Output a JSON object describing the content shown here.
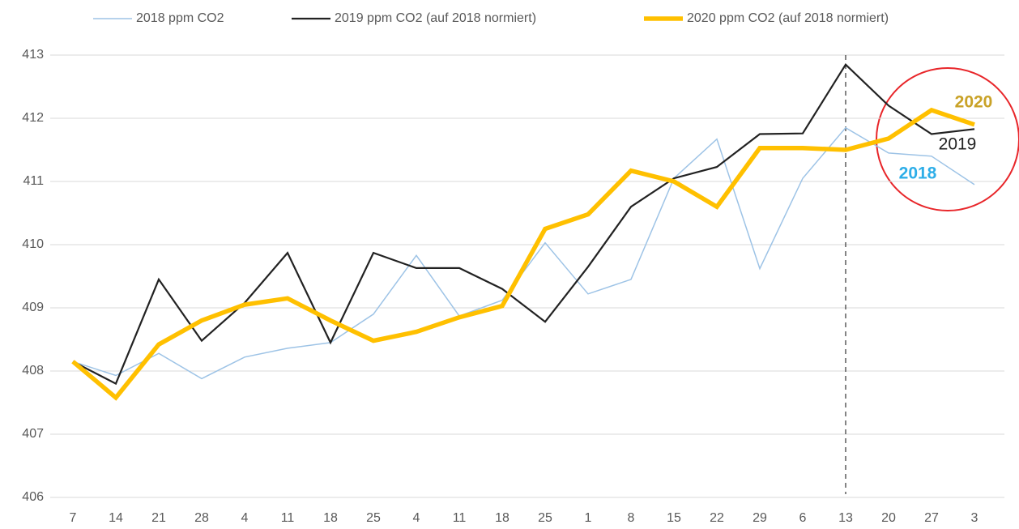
{
  "chart_data": {
    "type": "line",
    "categories": [
      "7",
      "14",
      "21",
      "28",
      "4",
      "11",
      "18",
      "25",
      "4",
      "11",
      "18",
      "25",
      "1",
      "8",
      "15",
      "22",
      "29",
      "6",
      "13",
      "20",
      "27",
      "3"
    ],
    "series": [
      {
        "name": "2018 ppm CO2",
        "color": "#9dc3e6",
        "width": 1.5,
        "values": [
          408.15,
          407.93,
          408.28,
          407.88,
          408.22,
          408.36,
          408.45,
          408.9,
          409.83,
          408.87,
          409.12,
          410.03,
          409.22,
          409.45,
          411.05,
          411.67,
          409.62,
          411.05,
          411.85,
          411.45,
          411.4,
          410.95
        ]
      },
      {
        "name": "2019 ppm CO2 (auf 2018 normiert)",
        "color": "#222222",
        "width": 2.2,
        "values": [
          408.15,
          407.8,
          409.45,
          408.48,
          409.08,
          409.87,
          408.45,
          409.87,
          409.63,
          409.63,
          409.3,
          408.78,
          409.65,
          410.6,
          411.05,
          411.23,
          411.75,
          411.76,
          412.85,
          412.2,
          411.75,
          411.83
        ]
      },
      {
        "name": "2020 ppm CO2 (auf 2018 normiert)",
        "color": "#ffc000",
        "width": 5.5,
        "values": [
          408.15,
          407.58,
          408.42,
          408.8,
          409.05,
          409.15,
          408.8,
          408.48,
          408.62,
          408.85,
          409.03,
          410.25,
          410.48,
          411.17,
          411.0,
          410.6,
          411.53,
          411.53,
          411.5,
          411.68,
          412.13,
          411.9
        ]
      }
    ],
    "annotations": [
      {
        "text": "2020",
        "color": "#c9a227"
      },
      {
        "text": "2019",
        "color": "#222222"
      },
      {
        "text": "2018",
        "color": "#2eaee8"
      }
    ],
    "ylim": [
      406,
      413
    ],
    "yticks": [
      406,
      407,
      408,
      409,
      410,
      411,
      412,
      413
    ],
    "grid": true,
    "legend": "top"
  }
}
